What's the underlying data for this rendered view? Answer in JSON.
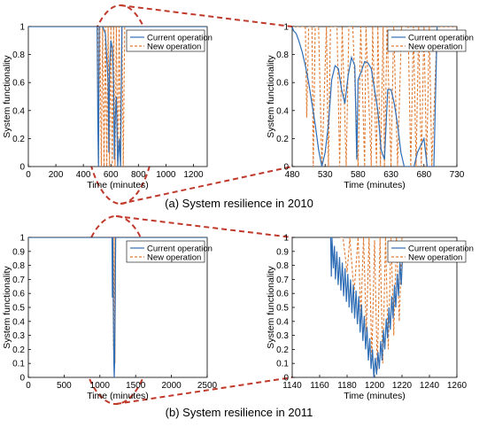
{
  "colors": {
    "current": "#2f6db5",
    "new": "#e07a30",
    "highlight": "#c0392b"
  },
  "captions": {
    "a": "(a) System resilience in 2010",
    "b": "(b) System resilience in 2011"
  },
  "chart_data": [
    {
      "type": "line",
      "xlabel": "Time (minutes)",
      "ylabel": "System functionality",
      "xlim": [
        0,
        1300
      ],
      "ylim": [
        0,
        1
      ],
      "xticks": [
        0,
        200,
        400,
        600,
        800,
        1000,
        1200
      ],
      "yticks": [
        0,
        0.2,
        0.4,
        0.6,
        0.8,
        1
      ],
      "legend": "top-right",
      "series": [
        {
          "name": "Current operation",
          "style": "solid",
          "x": [
            0,
            500,
            505,
            510,
            515,
            540,
            560,
            580,
            585,
            590,
            600,
            610,
            620,
            625,
            630,
            640,
            650,
            660,
            670,
            680,
            700,
            1300
          ],
          "y": [
            1,
            1,
            0.3,
            0,
            1,
            1,
            0.95,
            0.6,
            0.1,
            0.7,
            0.9,
            0.85,
            0.6,
            0.05,
            0.3,
            0.5,
            0,
            0.2,
            0,
            1,
            1,
            1
          ]
        },
        {
          "name": "New operation",
          "style": "dashed",
          "x": [
            0,
            505,
            510,
            520,
            530,
            540,
            550,
            560,
            570,
            580,
            590,
            600,
            610,
            620,
            630,
            640,
            650,
            660,
            670,
            680,
            690,
            700,
            1300
          ],
          "y": [
            1,
            1,
            0,
            1,
            0,
            1,
            0,
            1,
            0,
            1,
            0,
            1,
            0,
            1,
            0,
            1,
            0,
            1,
            0,
            1,
            0,
            1,
            1
          ]
        }
      ]
    },
    {
      "type": "line",
      "xlabel": "Time (minutes)",
      "ylabel": "System functionality",
      "xlim": [
        480,
        730
      ],
      "ylim": [
        0,
        1
      ],
      "xticks": [
        480,
        530,
        580,
        630,
        680,
        730
      ],
      "yticks": [
        0,
        0.2,
        0.4,
        0.6,
        0.8,
        1
      ],
      "legend": "top-right",
      "series": [
        {
          "name": "Current operation",
          "style": "solid",
          "x": [
            480,
            482,
            486,
            490,
            495,
            500,
            505,
            510,
            515,
            520,
            525,
            530,
            535,
            540,
            545,
            550,
            555,
            560,
            565,
            570,
            575,
            578,
            580,
            585,
            590,
            595,
            600,
            605,
            610,
            615,
            620,
            625,
            630,
            635,
            640,
            645,
            650,
            655,
            660,
            665,
            670,
            675,
            680,
            685,
            690,
            695,
            700
          ],
          "y": [
            1,
            0.97,
            0.95,
            0.9,
            0.82,
            0.72,
            0.6,
            0.45,
            0.3,
            0.12,
            0.0,
            0.1,
            0.3,
            0.62,
            0.72,
            0.7,
            0.55,
            0.45,
            0.65,
            0.78,
            0.72,
            0.05,
            0.62,
            0.68,
            0.75,
            0.74,
            0.7,
            0.55,
            0.4,
            0.12,
            0.05,
            0.55,
            0.55,
            0.45,
            0.3,
            0.1,
            0.0,
            0.0,
            0.0,
            0.0,
            0.1,
            0.15,
            0.2,
            0.0,
            0.0,
            0.0,
            1.0
          ]
        },
        {
          "name": "New operation",
          "style": "dashed",
          "x": [
            480,
            500,
            502,
            505,
            510,
            512,
            515,
            520,
            525,
            532,
            535,
            538,
            548,
            552,
            556,
            562,
            566,
            572,
            580,
            584,
            590,
            592,
            600,
            602,
            608,
            610,
            614,
            618,
            620,
            624,
            630,
            634,
            640,
            646,
            650,
            656,
            660,
            664,
            668,
            672,
            676,
            680,
            684,
            688,
            692,
            700,
            730
          ],
          "y": [
            1,
            1,
            0.35,
            1,
            1,
            0.0,
            1,
            1,
            0.0,
            1,
            0.0,
            1,
            1,
            0.0,
            1,
            0.0,
            1,
            1,
            0.0,
            1,
            0.0,
            1,
            0.0,
            1,
            0.0,
            1,
            0.0,
            1,
            0.0,
            1,
            0.0,
            1,
            0.0,
            1,
            1,
            1,
            0.0,
            1,
            0.0,
            1,
            0.0,
            1,
            0.0,
            1,
            0.0,
            1,
            1
          ]
        }
      ]
    },
    {
      "type": "line",
      "xlabel": "Time (minutes)",
      "ylabel": "System functionality",
      "xlim": [
        0,
        2500
      ],
      "ylim": [
        0,
        1
      ],
      "xticks": [
        0,
        500,
        1000,
        1500,
        2000,
        2500
      ],
      "yticks": [
        0,
        0.1,
        0.2,
        0.3,
        0.4,
        0.5,
        0.6,
        0.7,
        0.8,
        0.9,
        1
      ],
      "legend": "top-right",
      "series": [
        {
          "name": "Current operation",
          "style": "solid",
          "x": [
            0,
            1170,
            1175,
            1180,
            1195,
            1200,
            1205,
            1215,
            1220,
            2500
          ],
          "y": [
            1,
            1,
            0.57,
            1,
            0.1,
            0.0,
            0.1,
            0.6,
            1,
            1
          ]
        },
        {
          "name": "New operation",
          "style": "dashed",
          "x": [
            0,
            1180,
            1190,
            1200,
            1210,
            1220,
            2500
          ],
          "y": [
            1,
            1,
            0.2,
            1,
            0.1,
            1,
            1
          ]
        }
      ]
    },
    {
      "type": "line",
      "xlabel": "Time (minutes)",
      "ylabel": "System functionality",
      "xlim": [
        1140,
        1260
      ],
      "ylim": [
        0,
        1
      ],
      "xticks": [
        1140,
        1160,
        1180,
        1200,
        1220,
        1240,
        1260
      ],
      "yticks": [
        0,
        0.1,
        0.2,
        0.3,
        0.4,
        0.5,
        0.6,
        0.7,
        0.8,
        0.9,
        1
      ],
      "legend": "top-right",
      "series": [
        {
          "name": "Current operation",
          "style": "solid",
          "x": [
            1168,
            1168.5,
            1169,
            1170,
            1170.8,
            1171.5,
            1172.5,
            1173.5,
            1174.5,
            1175.5,
            1176.5,
            1177.5,
            1178.5,
            1179.5,
            1180.5,
            1181.5,
            1182.5,
            1183.5,
            1184.5,
            1185.5,
            1186.5,
            1187.5,
            1188.5,
            1189.5,
            1190.5,
            1191.5,
            1192.5,
            1193.5,
            1194.5,
            1195.5,
            1196.5,
            1197.5,
            1198.5,
            1199.5,
            1200.5,
            1201.5,
            1202.5,
            1203.5,
            1204.5,
            1205.5,
            1206.5,
            1207.5,
            1208.5,
            1209.5,
            1210.5,
            1211.5,
            1212.5,
            1213.5,
            1214.5,
            1215.5,
            1216.5,
            1217.5,
            1218.5,
            1219.5,
            1220.5
          ],
          "y": [
            1,
            0.72,
            1,
            0.78,
            0.94,
            0.7,
            0.9,
            0.66,
            0.86,
            0.62,
            0.82,
            0.58,
            0.78,
            0.54,
            0.74,
            0.5,
            0.7,
            0.46,
            0.66,
            0.42,
            0.62,
            0.38,
            0.58,
            0.32,
            0.52,
            0.26,
            0.44,
            0.2,
            0.36,
            0.12,
            0.28,
            0.06,
            0.2,
            0.0,
            0.14,
            0.02,
            0.18,
            0.06,
            0.26,
            0.12,
            0.34,
            0.2,
            0.42,
            0.28,
            0.5,
            0.34,
            0.58,
            0.42,
            0.66,
            0.5,
            0.74,
            0.58,
            0.82,
            0.66,
            0.9
          ]
        },
        {
          "name": "New operation",
          "style": "dashed",
          "x": [
            1175,
            1177,
            1180,
            1182,
            1185,
            1188,
            1190,
            1192,
            1194,
            1196,
            1198,
            1200,
            1202,
            1204,
            1206,
            1208,
            1210,
            1212,
            1214,
            1216,
            1218,
            1220
          ],
          "y": [
            1,
            1,
            0.75,
            1,
            0.6,
            1,
            0.45,
            1,
            0.32,
            1,
            0.12,
            0.98,
            0.05,
            1,
            0.1,
            1,
            0.2,
            1,
            0.3,
            1,
            0.4,
            1
          ]
        }
      ]
    }
  ]
}
